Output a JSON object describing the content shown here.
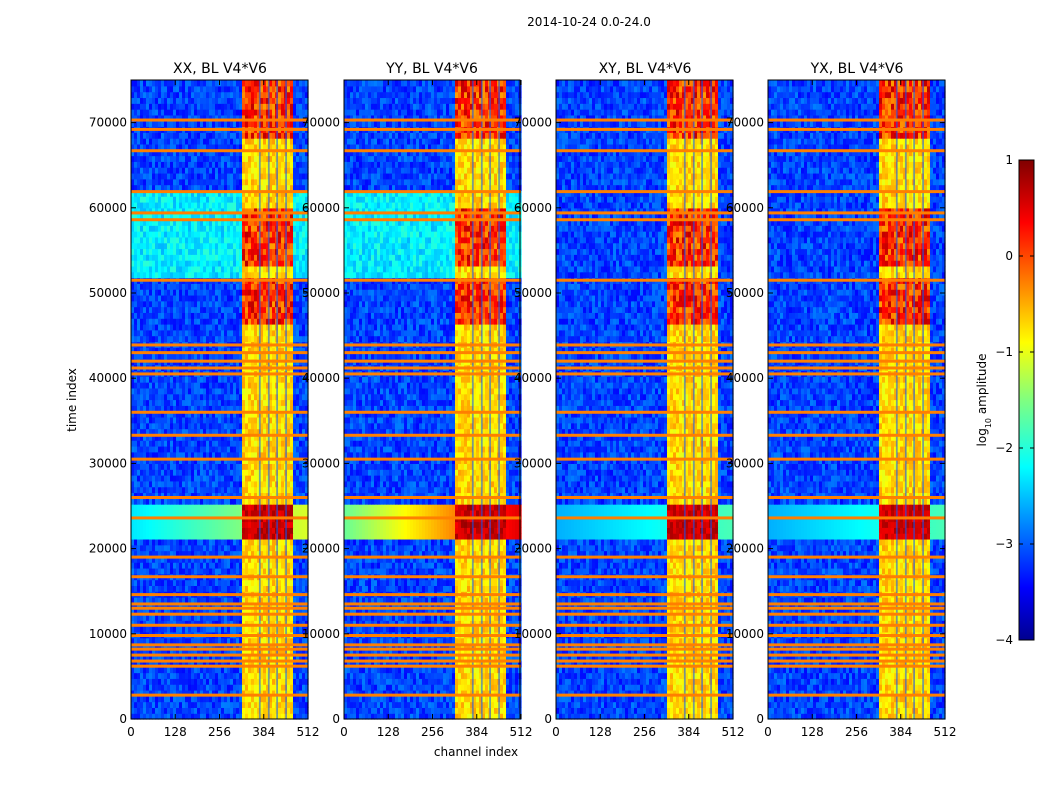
{
  "figure": {
    "suptitle": "2014-10-24 0.0-24.0",
    "xlabel": "channel index",
    "ylabel": "time index"
  },
  "chart_data": {
    "type": "heatmap",
    "colormap": "jet",
    "x_range": [
      0,
      512
    ],
    "y_range": [
      0,
      75000
    ],
    "x_ticks": [
      0,
      128,
      256,
      384,
      512
    ],
    "y_ticks": [
      0,
      10000,
      20000,
      30000,
      40000,
      50000,
      60000,
      70000
    ],
    "bright_channel_range": [
      325,
      470
    ],
    "panels": [
      {
        "title": "XX, BL V4*V6",
        "flare_level": 0.95,
        "fringe_strength": 0.55,
        "wide_band_level": 0.7,
        "wide_band_range": [
          52000,
          62000
        ]
      },
      {
        "title": "YY, BL V4*V6",
        "flare_level": 1.0,
        "fringe_strength": 1.0,
        "wide_band_level": 0.75,
        "wide_band_range": [
          52000,
          62000
        ]
      },
      {
        "title": "XY, BL V4*V6",
        "flare_level": 0.85,
        "fringe_strength": 0.35,
        "wide_band_level": 0.0,
        "wide_band_range": [
          52000,
          62000
        ]
      },
      {
        "title": "YX, BL V4*V6",
        "flare_level": 0.85,
        "fringe_strength": 0.35,
        "wide_band_level": 0.0,
        "wide_band_range": [
          52000,
          62000
        ]
      }
    ],
    "flare_range": [
      21000,
      25000
    ],
    "active_ranges": [
      [
        46500,
        52000
      ],
      [
        53000,
        60000
      ],
      [
        68000,
        75000
      ]
    ],
    "orange_rfi_times": [
      2800,
      6200,
      6800,
      7500,
      8200,
      8700,
      9800,
      11000,
      12300,
      13000,
      13500,
      14600,
      16700,
      19000,
      23600,
      26000,
      30500,
      33300,
      36000,
      40500,
      41200,
      42000,
      43000,
      43900,
      51500,
      58600,
      59400,
      61900,
      66700,
      69200,
      70300
    ],
    "colorbar": {
      "label": "log10 amplitude",
      "label_base": "log",
      "label_sub": "10",
      "label_rest": " amplitude",
      "range": [
        -4,
        1
      ],
      "ticks": [
        1,
        0,
        -1,
        -2,
        -3,
        -4
      ],
      "tick_labels": [
        "1",
        "0",
        "−1",
        "−2",
        "−3",
        "−4"
      ]
    }
  }
}
